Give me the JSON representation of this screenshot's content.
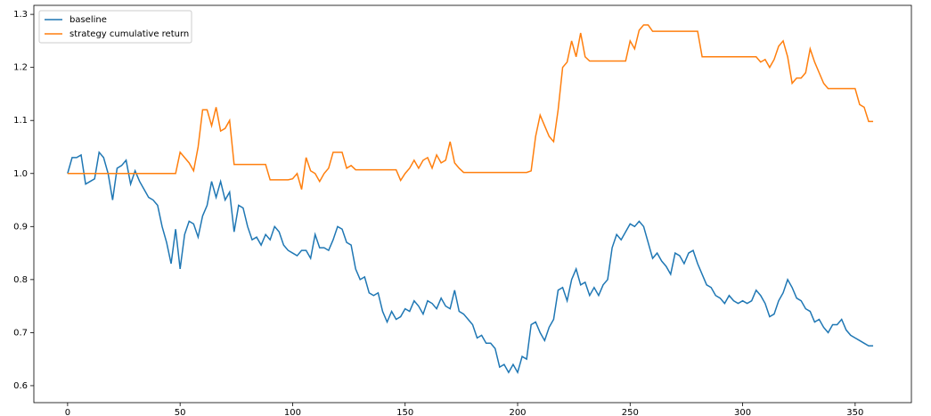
{
  "chart_data": {
    "type": "line",
    "x": [
      0,
      2,
      4,
      6,
      8,
      10,
      12,
      14,
      16,
      18,
      20,
      22,
      24,
      26,
      28,
      30,
      32,
      34,
      36,
      38,
      40,
      42,
      44,
      46,
      48,
      50,
      52,
      54,
      56,
      58,
      60,
      62,
      64,
      66,
      68,
      70,
      72,
      74,
      76,
      78,
      80,
      82,
      84,
      86,
      88,
      90,
      92,
      94,
      96,
      98,
      100,
      102,
      104,
      106,
      108,
      110,
      112,
      114,
      116,
      118,
      120,
      122,
      124,
      126,
      128,
      130,
      132,
      134,
      136,
      138,
      140,
      142,
      144,
      146,
      148,
      150,
      152,
      154,
      156,
      158,
      160,
      162,
      164,
      166,
      168,
      170,
      172,
      174,
      176,
      178,
      180,
      182,
      184,
      186,
      188,
      190,
      192,
      194,
      196,
      198,
      200,
      202,
      204,
      206,
      208,
      210,
      212,
      214,
      216,
      218,
      220,
      222,
      224,
      226,
      228,
      230,
      232,
      234,
      236,
      238,
      240,
      242,
      244,
      246,
      248,
      250,
      252,
      254,
      256,
      258,
      260,
      262,
      264,
      266,
      268,
      270,
      272,
      274,
      276,
      278,
      280,
      282,
      284,
      286,
      288,
      290,
      292,
      294,
      296,
      298,
      300,
      302,
      304,
      306,
      308,
      310,
      312,
      314,
      316,
      318,
      320,
      322,
      324,
      326,
      328,
      330,
      332,
      334,
      336,
      338,
      340,
      342,
      344,
      346,
      348,
      350,
      352,
      354,
      356,
      358
    ],
    "series": [
      {
        "name": "baseline",
        "color": "#1f77b4",
        "values": [
          1.0,
          1.03,
          1.03,
          1.035,
          0.98,
          0.985,
          0.99,
          1.04,
          1.03,
          1.0,
          0.95,
          1.01,
          1.015,
          1.025,
          0.98,
          1.005,
          0.985,
          0.97,
          0.955,
          0.95,
          0.94,
          0.9,
          0.87,
          0.83,
          0.895,
          0.82,
          0.885,
          0.91,
          0.905,
          0.88,
          0.92,
          0.94,
          0.985,
          0.955,
          0.985,
          0.95,
          0.965,
          0.89,
          0.94,
          0.935,
          0.9,
          0.875,
          0.88,
          0.865,
          0.885,
          0.875,
          0.9,
          0.89,
          0.865,
          0.855,
          0.85,
          0.845,
          0.855,
          0.855,
          0.84,
          0.885,
          0.86,
          0.86,
          0.855,
          0.875,
          0.9,
          0.895,
          0.87,
          0.865,
          0.82,
          0.8,
          0.805,
          0.775,
          0.77,
          0.775,
          0.74,
          0.72,
          0.74,
          0.725,
          0.73,
          0.745,
          0.74,
          0.76,
          0.75,
          0.735,
          0.76,
          0.755,
          0.745,
          0.765,
          0.75,
          0.745,
          0.78,
          0.74,
          0.735,
          0.725,
          0.715,
          0.69,
          0.695,
          0.68,
          0.68,
          0.67,
          0.635,
          0.64,
          0.625,
          0.64,
          0.625,
          0.655,
          0.65,
          0.715,
          0.72,
          0.7,
          0.685,
          0.71,
          0.725,
          0.78,
          0.785,
          0.76,
          0.8,
          0.82,
          0.79,
          0.795,
          0.77,
          0.785,
          0.77,
          0.79,
          0.8,
          0.86,
          0.885,
          0.875,
          0.89,
          0.905,
          0.9,
          0.91,
          0.9,
          0.87,
          0.84,
          0.85,
          0.835,
          0.825,
          0.81,
          0.85,
          0.845,
          0.83,
          0.85,
          0.855,
          0.83,
          0.81,
          0.79,
          0.785,
          0.77,
          0.765,
          0.755,
          0.77,
          0.76,
          0.755,
          0.76,
          0.755,
          0.76,
          0.78,
          0.77,
          0.755,
          0.73,
          0.735,
          0.76,
          0.775,
          0.8,
          0.785,
          0.765,
          0.76,
          0.745,
          0.74,
          0.72,
          0.725,
          0.71,
          0.7,
          0.715,
          0.715,
          0.725,
          0.705,
          0.695,
          0.69,
          0.685,
          0.68,
          0.675,
          0.675
        ]
      },
      {
        "name": "strategy cumulative return",
        "color": "#ff7f0e",
        "values": [
          1.0,
          1.0,
          1.0,
          1.0,
          1.0,
          1.0,
          1.0,
          1.0,
          1.0,
          1.0,
          1.0,
          1.0,
          1.0,
          1.0,
          1.0,
          1.0,
          1.0,
          1.0,
          1.0,
          1.0,
          1.0,
          1.0,
          1.0,
          1.0,
          1.0,
          1.04,
          1.03,
          1.02,
          1.005,
          1.05,
          1.12,
          1.12,
          1.09,
          1.125,
          1.08,
          1.085,
          1.1,
          1.017,
          1.017,
          1.017,
          1.017,
          1.017,
          1.017,
          1.017,
          1.017,
          0.988,
          0.988,
          0.988,
          0.988,
          0.988,
          0.99,
          1.0,
          0.97,
          1.03,
          1.005,
          1.0,
          0.985,
          1.0,
          1.01,
          1.04,
          1.04,
          1.04,
          1.01,
          1.015,
          1.007,
          1.007,
          1.007,
          1.007,
          1.007,
          1.007,
          1.007,
          1.007,
          1.007,
          1.007,
          0.987,
          1.0,
          1.01,
          1.025,
          1.01,
          1.025,
          1.03,
          1.01,
          1.035,
          1.02,
          1.025,
          1.06,
          1.02,
          1.01,
          1.002,
          1.002,
          1.002,
          1.002,
          1.002,
          1.002,
          1.002,
          1.002,
          1.002,
          1.002,
          1.002,
          1.002,
          1.002,
          1.002,
          1.002,
          1.005,
          1.07,
          1.11,
          1.09,
          1.07,
          1.06,
          1.12,
          1.2,
          1.21,
          1.25,
          1.22,
          1.265,
          1.22,
          1.212,
          1.212,
          1.212,
          1.212,
          1.212,
          1.212,
          1.212,
          1.212,
          1.212,
          1.25,
          1.235,
          1.27,
          1.28,
          1.28,
          1.268,
          1.268,
          1.268,
          1.268,
          1.268,
          1.268,
          1.268,
          1.268,
          1.268,
          1.268,
          1.268,
          1.22,
          1.22,
          1.22,
          1.22,
          1.22,
          1.22,
          1.22,
          1.22,
          1.22,
          1.22,
          1.22,
          1.22,
          1.22,
          1.21,
          1.215,
          1.2,
          1.215,
          1.24,
          1.25,
          1.22,
          1.17,
          1.18,
          1.18,
          1.19,
          1.235,
          1.21,
          1.19,
          1.17,
          1.16,
          1.16,
          1.16,
          1.16,
          1.16,
          1.16,
          1.16,
          1.13,
          1.125,
          1.098,
          1.098
        ]
      }
    ],
    "xlim": [
      -15,
      375
    ],
    "xticks": [
      0,
      50,
      100,
      150,
      200,
      250,
      300,
      350
    ],
    "ylim": [
      0.568,
      1.317
    ],
    "yticks": [
      0.6,
      0.7,
      0.8,
      0.9,
      {
        "value": 1,
        "label": "1.0"
      },
      1.1,
      1.2,
      1.3
    ],
    "legend": "upper left"
  }
}
